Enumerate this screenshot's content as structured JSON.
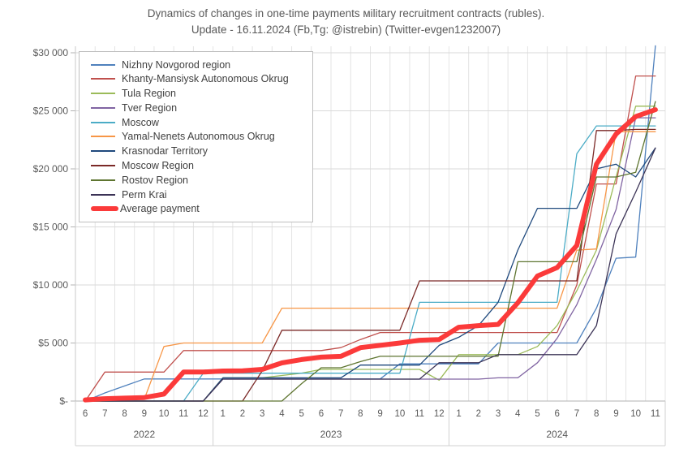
{
  "title": {
    "line1": "Dynamics of changes in one-time payments мilitary recruitment contracts (rubles).",
    "line2": "Update - 16.11.2024 (Fb,Tg: @istrebin) (Twitter-evgen1232007)"
  },
  "legend": {
    "position": "top-left"
  },
  "chart_data": {
    "type": "line",
    "grid": true,
    "ylim": [
      0,
      30000
    ],
    "y_tick_step": 5000,
    "y_ticks": [
      {
        "v": 0,
        "label": "$-"
      },
      {
        "v": 5000,
        "label": "$5 000"
      },
      {
        "v": 10000,
        "label": "$10 000"
      },
      {
        "v": 15000,
        "label": "$15 000"
      },
      {
        "v": 20000,
        "label": "$20 000"
      },
      {
        "v": 25000,
        "label": "$25 000"
      },
      {
        "v": 30000,
        "label": "$30 000"
      }
    ],
    "categories": [
      "6",
      "7",
      "8",
      "9",
      "10",
      "11",
      "12",
      "1",
      "2",
      "3",
      "4",
      "5",
      "6",
      "7",
      "8",
      "9",
      "10",
      "11",
      "12",
      "1",
      "2",
      "3",
      "4",
      "5",
      "6",
      "7",
      "8",
      "9",
      "10",
      "11"
    ],
    "year_groups": [
      {
        "label": "2022",
        "count": 7
      },
      {
        "label": "2023",
        "count": 12
      },
      {
        "label": "2024",
        "count": 11
      }
    ],
    "legend_position": "top-left",
    "series": [
      {
        "name": "Nizhny Novgorod region",
        "color": "#4F81BD",
        "width": 1.3,
        "values": [
          0,
          700,
          1300,
          1900,
          1900,
          1900,
          1900,
          1900,
          1900,
          1900,
          1900,
          1900,
          1900,
          1900,
          1900,
          1900,
          3200,
          3200,
          3200,
          3200,
          3200,
          5000,
          5000,
          5000,
          5000,
          5000,
          8000,
          12300,
          12400,
          30600
        ]
      },
      {
        "name": "Khanty-Mansiysk Autonomous Okrug",
        "color": "#C0504D",
        "width": 1.3,
        "values": [
          0,
          2500,
          2500,
          2500,
          2500,
          4350,
          4350,
          4350,
          4350,
          4350,
          4350,
          4350,
          4350,
          4600,
          5300,
          5900,
          5900,
          5900,
          5900,
          5900,
          5900,
          5900,
          5900,
          5900,
          5900,
          10000,
          18700,
          18700,
          28000,
          28000
        ]
      },
      {
        "name": "Tula Region",
        "color": "#9BBB59",
        "width": 1.3,
        "values": [
          0,
          0,
          0,
          0,
          0,
          0,
          0,
          2000,
          2000,
          2000,
          2200,
          2400,
          2730,
          2730,
          2730,
          2730,
          2730,
          2730,
          1800,
          4000,
          4000,
          4000,
          4000,
          4700,
          6500,
          9500,
          13000,
          19300,
          25400,
          25400
        ]
      },
      {
        "name": "Tver Region",
        "color": "#8064A2",
        "width": 1.3,
        "values": [
          0,
          0,
          0,
          0,
          0,
          0,
          0,
          1890,
          1890,
          1890,
          1890,
          1890,
          1890,
          1890,
          1890,
          1890,
          1890,
          1890,
          1890,
          1890,
          1890,
          2000,
          2000,
          3300,
          5400,
          8300,
          12200,
          16500,
          24400,
          24400
        ]
      },
      {
        "name": "Moscow",
        "color": "#4BACC6",
        "width": 1.3,
        "values": [
          0,
          0,
          0,
          0,
          0,
          0,
          2400,
          2400,
          2400,
          2400,
          2400,
          2400,
          2400,
          2400,
          2400,
          2400,
          2400,
          8500,
          8500,
          8500,
          8500,
          8500,
          8500,
          8500,
          8500,
          21300,
          23700,
          23700,
          23700,
          23700
        ]
      },
      {
        "name": "Yamal-Nenets Autonomous Okrug",
        "color": "#F79646",
        "width": 1.3,
        "values": [
          0,
          0,
          150,
          150,
          4700,
          5000,
          5000,
          5000,
          5000,
          5000,
          8000,
          8000,
          8000,
          8000,
          8000,
          8000,
          8000,
          8000,
          8000,
          8000,
          8000,
          8000,
          8000,
          8000,
          8000,
          13000,
          13100,
          23200,
          23200,
          23200
        ]
      },
      {
        "name": "Krasnodar Territory",
        "color": "#1F497D",
        "width": 1.3,
        "values": [
          0,
          0,
          0,
          0,
          0,
          0,
          0,
          2000,
          2000,
          2000,
          2000,
          2000,
          2000,
          2000,
          3100,
          3100,
          3100,
          3100,
          4800,
          5500,
          6500,
          8500,
          13000,
          16600,
          16600,
          16600,
          20000,
          20400,
          19300,
          21800
        ]
      },
      {
        "name": "Moscow Region",
        "color": "#7B2927",
        "width": 1.3,
        "values": [
          0,
          0,
          0,
          0,
          0,
          0,
          0,
          0,
          0,
          2600,
          6100,
          6100,
          6100,
          6100,
          6100,
          6100,
          6100,
          10350,
          10350,
          10350,
          10350,
          10350,
          10350,
          10350,
          10350,
          10350,
          23300,
          23300,
          23400,
          23400
        ]
      },
      {
        "name": "Rostov Region",
        "color": "#5E7530",
        "width": 1.3,
        "values": [
          0,
          0,
          0,
          0,
          0,
          0,
          0,
          0,
          0,
          0,
          0,
          1500,
          2870,
          2870,
          3400,
          3850,
          3850,
          3850,
          3850,
          3850,
          3850,
          3850,
          12000,
          12000,
          12000,
          12000,
          19300,
          19300,
          19700,
          25800
        ]
      },
      {
        "name": "Perm Krai",
        "color": "#3B3356",
        "width": 1.3,
        "values": [
          0,
          0,
          0,
          0,
          0,
          0,
          0,
          1890,
          1890,
          1890,
          1890,
          1890,
          1890,
          1890,
          1890,
          1890,
          1890,
          1890,
          3300,
          3300,
          3300,
          4000,
          4000,
          4000,
          4000,
          4000,
          6500,
          14400,
          18000,
          21800
        ]
      },
      {
        "name": "Average payment",
        "color": "#FB3A3A",
        "width": 6,
        "values": [
          100,
          200,
          250,
          300,
          600,
          2500,
          2500,
          2590,
          2600,
          2730,
          3290,
          3570,
          3780,
          3850,
          4600,
          4800,
          5000,
          5240,
          5300,
          6360,
          6500,
          6600,
          8460,
          10770,
          11500,
          13400,
          20400,
          23000,
          24500,
          25100
        ]
      }
    ]
  }
}
